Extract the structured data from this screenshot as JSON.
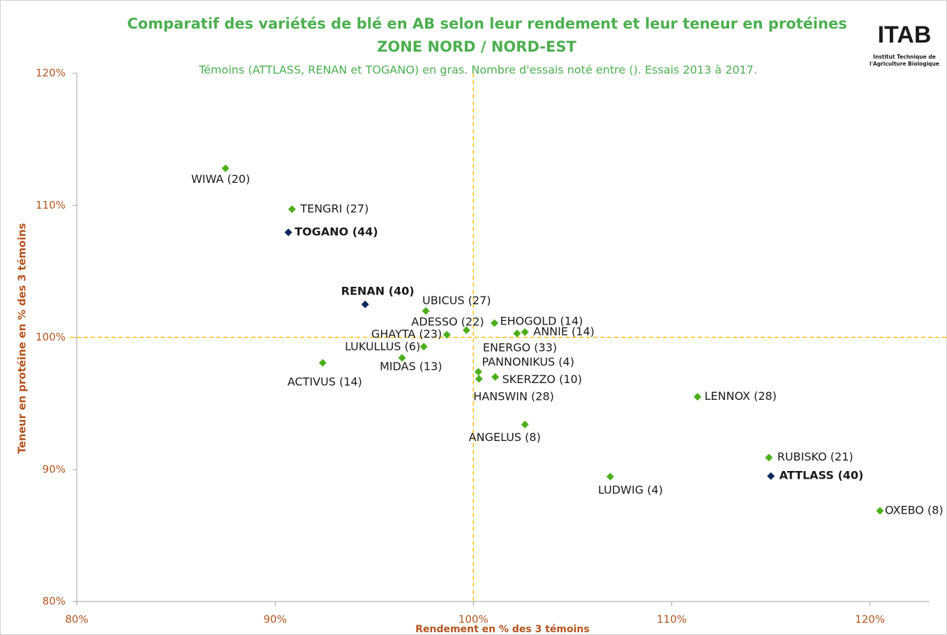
{
  "chart_data": {
    "type": "scatter",
    "title": "Comparatif des variétés de blé en AB selon leur rendement et leur teneur en protéines",
    "subtitle": "ZONE NORD / NORD-EST",
    "note": "Témoins (ATTLASS, RENAN et TOGANO) en gras. Nombre d'essais noté entre (). Essais 2013 à 2017.",
    "x_label": "Rendement en % des 3 témoins",
    "y_label": "Teneur en protéine en % des 3 témoins",
    "logo": {
      "name": "ITAB",
      "line1": "Institut Technique de",
      "line2": "l'Agriculture Biologique"
    },
    "xlim": [
      80,
      123
    ],
    "ylim": [
      80,
      120
    ],
    "xticks": [
      {
        "value": 80,
        "label": "80%"
      },
      {
        "value": 90,
        "label": "90%"
      },
      {
        "value": 100,
        "label": "100%"
      },
      {
        "value": 110,
        "label": "110%"
      },
      {
        "value": 120,
        "label": "120%"
      }
    ],
    "yticks": [
      {
        "value": 80,
        "label": "80%"
      },
      {
        "value": 90,
        "label": "90%"
      },
      {
        "value": 100,
        "label": "100%"
      },
      {
        "value": 110,
        "label": "110%"
      },
      {
        "value": 120,
        "label": "120%"
      }
    ],
    "vline": 100,
    "hline": 100,
    "line_color": "#ffc000",
    "points": [
      {
        "label": "WIWA (20)",
        "x": 87.5,
        "y": 112.8,
        "color": "#4caf1a"
      },
      {
        "label": "TENGRI (27)",
        "x": 90.85,
        "y": 109.7,
        "color": "#4caf1a"
      },
      {
        "label": "TOGANO (44)",
        "x": 90.67,
        "y": 107.95,
        "color": "#0d2a5c",
        "bold": true
      },
      {
        "label": "RENAN (40)",
        "x": 94.54,
        "y": 102.5,
        "color": "#0d2a5c",
        "bold": true
      },
      {
        "label": "UBICUS (27)",
        "x": 97.6,
        "y": 102.0,
        "color": "#4caf1a"
      },
      {
        "label": "ADESSO (22)",
        "x": 99.65,
        "y": 100.55,
        "color": "#4caf1a"
      },
      {
        "label": "EHOGOLD (14)",
        "x": 101.06,
        "y": 101.08,
        "color": "#4caf1a"
      },
      {
        "label": "ANNIE (14)",
        "x": 102.6,
        "y": 100.4,
        "color": "#4caf1a"
      },
      {
        "label": "ENERGO (33)",
        "x": 102.2,
        "y": 100.3,
        "color": "#4caf1a"
      },
      {
        "label": "GHAYTA (23)",
        "x": 98.66,
        "y": 100.2,
        "color": "#4caf1a"
      },
      {
        "label": "LUKULLUS (6)",
        "x": 97.5,
        "y": 99.3,
        "color": "#4caf1a"
      },
      {
        "label": "MIDAS (13)",
        "x": 96.4,
        "y": 98.45,
        "color": "#4caf1a"
      },
      {
        "label": "ACTIVUS (14)",
        "x": 92.4,
        "y": 98.07,
        "color": "#4caf1a"
      },
      {
        "label": "PANNONIKUS (4)",
        "x": 100.25,
        "y": 97.4,
        "color": "#4caf1a"
      },
      {
        "label": "HANSWIN (28)",
        "x": 100.28,
        "y": 96.86,
        "color": "#4caf1a"
      },
      {
        "label": "SKERZZO (10)",
        "x": 101.1,
        "y": 97.0,
        "color": "#4caf1a"
      },
      {
        "label": "LENNOX (28)",
        "x": 111.3,
        "y": 95.5,
        "color": "#4caf1a"
      },
      {
        "label": "ANGELUS (8)",
        "x": 102.6,
        "y": 93.4,
        "color": "#4caf1a"
      },
      {
        "label": "RUBISKO (21)",
        "x": 114.9,
        "y": 90.9,
        "color": "#4caf1a"
      },
      {
        "label": "ATTLASS (40)",
        "x": 115.0,
        "y": 89.5,
        "color": "#0d2a5c",
        "bold": true
      },
      {
        "label": "LUDWIG (4)",
        "x": 106.9,
        "y": 89.46,
        "color": "#4caf1a"
      },
      {
        "label": "OXEBO (8)",
        "x": 120.5,
        "y": 86.87,
        "color": "#4caf1a"
      }
    ]
  }
}
